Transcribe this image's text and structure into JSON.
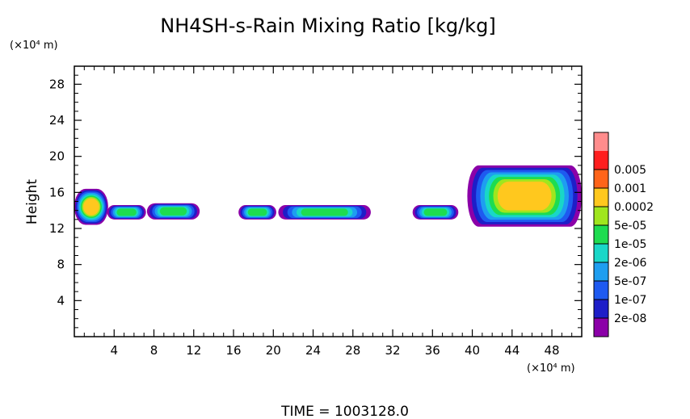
{
  "chart_data": {
    "type": "heatmap",
    "title": "NH4SH-s-Rain Mixing Ratio [kg/kg]",
    "ylabel": "Height",
    "x_unit": "(×10⁴ m)",
    "y_unit": "(×10⁴ m)",
    "xlim": [
      0,
      51
    ],
    "ylim": [
      0,
      30
    ],
    "x_ticks": [
      4,
      8,
      12,
      16,
      20,
      24,
      28,
      32,
      36,
      40,
      44,
      48
    ],
    "y_ticks": [
      4,
      8,
      12,
      16,
      20,
      24,
      28
    ],
    "colorbar": {
      "labels": [
        "2e-08",
        "1e-07",
        "5e-07",
        "2e-06",
        "1e-05",
        "5e-05",
        "0.0002",
        "0.001",
        "0.005"
      ],
      "colors": [
        "#8b00a8",
        "#1e1ec8",
        "#1e5af0",
        "#1e9ef0",
        "#19d7c8",
        "#1edc50",
        "#a0e61e",
        "#ffc81e",
        "#ff6419",
        "#ff1e1e",
        "#ff8c8c"
      ]
    },
    "regions": [
      {
        "x": [
          0.0,
          3.4
        ],
        "y": [
          12.4,
          16.4
        ],
        "peak": 7
      },
      {
        "x": [
          3.3,
          7.2
        ],
        "y": [
          13.0,
          14.6
        ],
        "peak": 5
      },
      {
        "x": [
          7.3,
          12.6
        ],
        "y": [
          13.0,
          14.8
        ],
        "peak": 5
      },
      {
        "x": [
          16.5,
          20.3
        ],
        "y": [
          13.0,
          14.6
        ],
        "peak": 5
      },
      {
        "x": [
          20.5,
          29.8
        ],
        "y": [
          13.0,
          14.6
        ],
        "peak": 5
      },
      {
        "x": [
          34.0,
          38.6
        ],
        "y": [
          13.0,
          14.6
        ],
        "peak": 5
      },
      {
        "x": [
          39.5,
          51.0
        ],
        "y": [
          12.2,
          19.0
        ],
        "peak": 7
      }
    ],
    "footer": "TIME  =  1003128.0"
  }
}
